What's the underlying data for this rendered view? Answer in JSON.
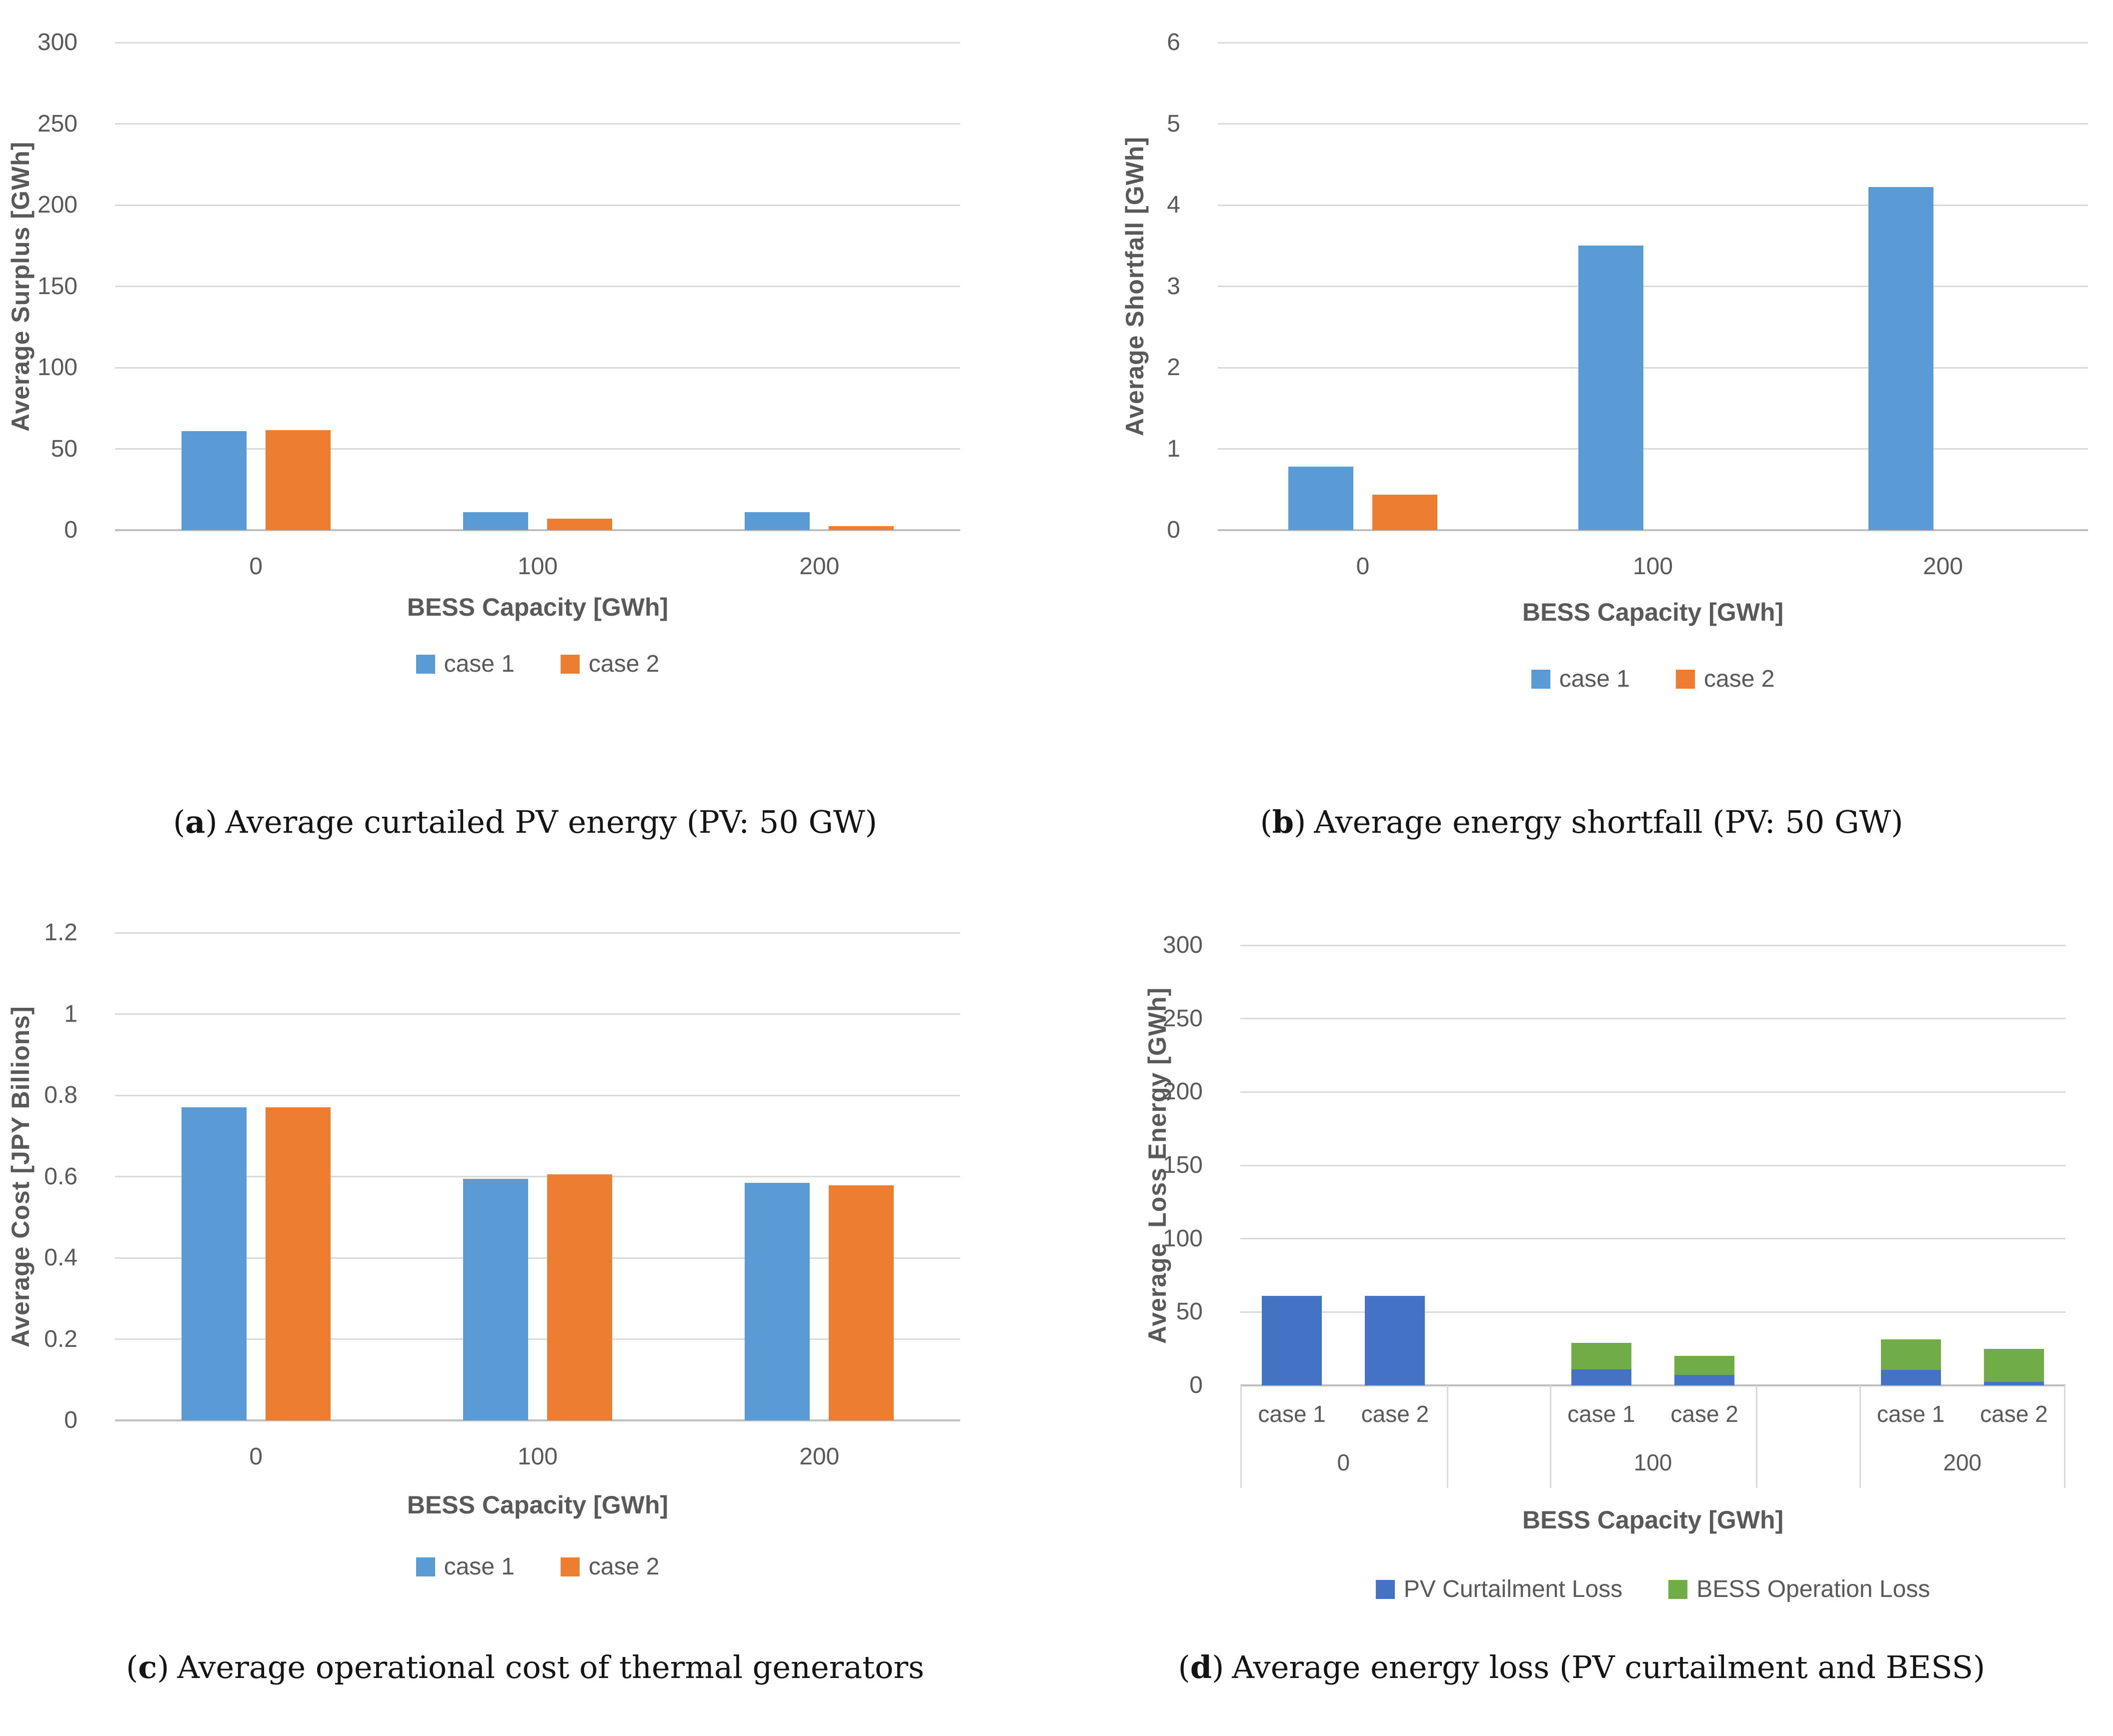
{
  "colors": {
    "case1_blue": "#5B9BD5",
    "case2_orange": "#ED7D31",
    "pv_curtailment_blue": "#4472C4",
    "bess_operation_green": "#70AD47",
    "gridline": "#D9D9D9",
    "axis_line": "#BFBFBF",
    "chart_text": "#595959"
  },
  "captions": [
    {
      "label": "a",
      "text": "Average curtailed PV energy (PV: 50 GW)"
    },
    {
      "label": "b",
      "text": "Average energy shortfall (PV: 50 GW)"
    },
    {
      "label": "c",
      "text": "Average operational cost of thermal generators"
    },
    {
      "label": "d",
      "text": "Average energy loss (PV curtailment and BESS)"
    }
  ],
  "chart_data": [
    {
      "id": "a",
      "type": "bar",
      "stacked": false,
      "title": "",
      "xlabel": "BESS Capacity [GWh]",
      "ylabel": "Average Surplus [GWh]",
      "categories": [
        "0",
        "100",
        "200"
      ],
      "series": [
        {
          "name": "case 1",
          "color": "#5B9BD5",
          "values": [
            61,
            11,
            11
          ]
        },
        {
          "name": "case 2",
          "color": "#ED7D31",
          "values": [
            61.5,
            7,
            2.5
          ]
        }
      ],
      "ylim": [
        0,
        300
      ],
      "ystep": 50,
      "yticks": [
        "0",
        "50",
        "100",
        "150",
        "200",
        "250",
        "300"
      ],
      "grid": true,
      "legend_position": "bottom"
    },
    {
      "id": "b",
      "type": "bar",
      "stacked": false,
      "title": "",
      "xlabel": "BESS Capacity [GWh]",
      "ylabel": "Average Shortfall [GWh]",
      "categories": [
        "0",
        "100",
        "200"
      ],
      "series": [
        {
          "name": "case 1",
          "color": "#5B9BD5",
          "values": [
            0.78,
            3.5,
            4.22
          ]
        },
        {
          "name": "case 2",
          "color": "#ED7D31",
          "values": [
            0.44,
            0,
            0
          ]
        }
      ],
      "ylim": [
        0,
        6
      ],
      "ystep": 1,
      "yticks": [
        "0",
        "1",
        "2",
        "3",
        "4",
        "5",
        "6"
      ],
      "grid": true,
      "legend_position": "bottom"
    },
    {
      "id": "c",
      "type": "bar",
      "stacked": false,
      "title": "",
      "xlabel": "BESS Capacity [GWh]",
      "ylabel": "Average Cost [JPY Billions]",
      "categories": [
        "0",
        "100",
        "200"
      ],
      "series": [
        {
          "name": "case 1",
          "color": "#5B9BD5",
          "values": [
            0.77,
            0.595,
            0.585
          ]
        },
        {
          "name": "case 2",
          "color": "#ED7D31",
          "values": [
            0.77,
            0.605,
            0.578
          ]
        }
      ],
      "ylim": [
        0,
        1.2
      ],
      "ystep": 0.2,
      "yticks": [
        "0",
        "0.2",
        "0.4",
        "0.6",
        "0.8",
        "1",
        "1.2"
      ],
      "grid": true,
      "legend_position": "bottom"
    },
    {
      "id": "d",
      "type": "bar",
      "stacked": true,
      "title": "",
      "xlabel": "BESS Capacity [GWh]",
      "ylabel": "Average  Loss Energy [GWh]",
      "categories": [
        "0",
        "100",
        "200"
      ],
      "subcategories": [
        "case 1",
        "case 2"
      ],
      "series": [
        {
          "name": "PV Curtailment Loss",
          "color": "#4472C4",
          "values": [
            [
              61,
              61
            ],
            [
              11,
              7
            ],
            [
              10.5,
              2.5
            ]
          ]
        },
        {
          "name": "BESS Operation Loss",
          "color": "#70AD47",
          "values": [
            [
              0,
              0
            ],
            [
              18,
              13
            ],
            [
              21,
              22.5
            ]
          ]
        }
      ],
      "ylim": [
        0,
        300
      ],
      "ystep": 50,
      "yticks": [
        "0",
        "50",
        "100",
        "150",
        "200",
        "250",
        "300"
      ],
      "grid": true,
      "legend_position": "bottom"
    }
  ]
}
